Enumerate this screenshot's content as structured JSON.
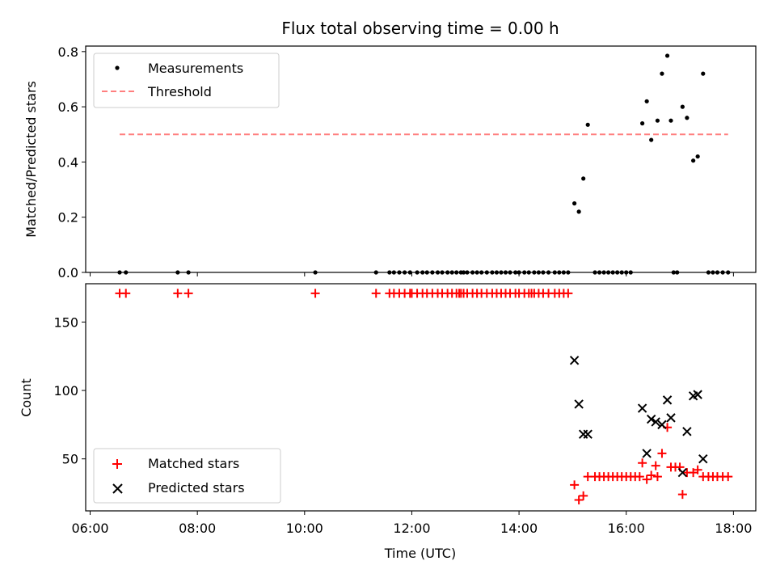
{
  "chart_data": [
    {
      "type": "scatter",
      "title": "Flux total observing time = 0.00 h",
      "xlabel": "",
      "ylabel": "Matched/Predicted stars",
      "xlim": [
        "05:55",
        "18:25"
      ],
      "ylim": [
        0,
        0.82
      ],
      "yticks": [
        0.0,
        0.2,
        0.4,
        0.6,
        0.8
      ],
      "ytick_labels": [
        "0.0",
        "0.2",
        "0.4",
        "0.6",
        "0.8"
      ],
      "legend_position": "upper-left",
      "colors": {
        "measurements": "#000000",
        "threshold": "#ff7f7f"
      },
      "series": [
        {
          "name": "Measurements",
          "marker": "dot",
          "color": "#000000",
          "x": [
            "06:33",
            "06:40",
            "07:38",
            "07:50",
            "10:12",
            "11:20",
            "11:35",
            "11:40",
            "11:46",
            "11:52",
            "11:58",
            "12:06",
            "12:12",
            "12:17",
            "12:23",
            "12:29",
            "12:34",
            "12:40",
            "12:45",
            "12:50",
            "12:55",
            "12:58",
            "13:02",
            "13:08",
            "13:13",
            "13:18",
            "13:24",
            "13:30",
            "13:35",
            "13:40",
            "13:45",
            "13:50",
            "13:56",
            "14:00",
            "14:06",
            "14:11",
            "14:17",
            "14:22",
            "14:27",
            "14:33",
            "14:40",
            "14:45",
            "14:50",
            "14:55",
            "15:02",
            "15:07",
            "15:12",
            "15:17",
            "15:25",
            "15:30",
            "15:35",
            "15:40",
            "15:45",
            "15:50",
            "15:55",
            "16:00",
            "16:05",
            "16:18",
            "16:23",
            "16:28",
            "16:35",
            "16:40",
            "16:46",
            "16:50",
            "16:53",
            "16:57",
            "17:03",
            "17:08",
            "17:15",
            "17:20",
            "17:26",
            "17:32",
            "17:37",
            "17:42",
            "17:48",
            "17:54"
          ],
          "y": [
            0,
            0,
            0,
            0,
            0,
            0,
            0,
            0,
            0,
            0,
            0,
            0,
            0,
            0,
            0,
            0,
            0,
            0,
            0,
            0,
            0,
            0,
            0,
            0,
            0,
            0,
            0,
            0,
            0,
            0,
            0,
            0,
            0,
            0,
            0,
            0,
            0,
            0,
            0,
            0,
            0,
            0,
            0,
            0,
            0.25,
            0.22,
            0.34,
            0.535,
            0,
            0,
            0,
            0,
            0,
            0,
            0,
            0,
            0,
            0.54,
            0.62,
            0.48,
            0.55,
            0.72,
            0.785,
            0.55,
            0,
            0,
            0.6,
            0.56,
            0.405,
            0.42,
            0.72,
            0,
            0,
            0,
            0,
            0
          ]
        },
        {
          "name": "Threshold",
          "marker": "dashed-line",
          "color": "#ff7f7f",
          "x": [
            "06:33",
            "17:54"
          ],
          "y": [
            0.5,
            0.5
          ]
        }
      ]
    },
    {
      "type": "scatter",
      "title": "",
      "xlabel": "Time (UTC)",
      "ylabel": "Count",
      "xlim": [
        "05:55",
        "18:25"
      ],
      "ylim": [
        12,
        178
      ],
      "xticks": [
        "06:00",
        "08:00",
        "10:00",
        "12:00",
        "14:00",
        "16:00",
        "18:00"
      ],
      "xtick_labels": [
        "06:00",
        "08:00",
        "10:00",
        "12:00",
        "14:00",
        "16:00",
        "18:00"
      ],
      "yticks": [
        50,
        100,
        150
      ],
      "ytick_labels": [
        "50",
        "100",
        "150"
      ],
      "legend_position": "lower-left",
      "colors": {
        "matched": "#ff0000",
        "predicted": "#000000"
      },
      "series": [
        {
          "name": "Matched stars",
          "marker": "plus",
          "color": "#ff0000",
          "x": [
            "06:33",
            "06:40",
            "07:38",
            "07:50",
            "10:12",
            "11:20",
            "11:35",
            "11:40",
            "11:46",
            "11:52",
            "11:58",
            "12:00",
            "12:06",
            "12:12",
            "12:17",
            "12:23",
            "12:29",
            "12:34",
            "12:40",
            "12:45",
            "12:50",
            "12:53",
            "12:55",
            "12:58",
            "13:02",
            "13:08",
            "13:13",
            "13:18",
            "13:24",
            "13:30",
            "13:35",
            "13:40",
            "13:45",
            "13:50",
            "13:56",
            "14:00",
            "14:06",
            "14:11",
            "14:14",
            "14:17",
            "14:22",
            "14:27",
            "14:33",
            "14:40",
            "14:45",
            "14:50",
            "14:55",
            "15:02",
            "15:07",
            "15:12",
            "15:17",
            "15:25",
            "15:30",
            "15:35",
            "15:40",
            "15:45",
            "15:50",
            "15:55",
            "16:00",
            "16:05",
            "16:10",
            "16:15",
            "16:18",
            "16:23",
            "16:28",
            "16:33",
            "16:35",
            "16:40",
            "16:46",
            "16:50",
            "16:55",
            "17:00",
            "17:03",
            "17:08",
            "17:15",
            "17:20",
            "17:26",
            "17:32",
            "17:37",
            "17:42",
            "17:48",
            "17:54"
          ],
          "y": [
            171,
            171,
            171,
            171,
            171,
            171,
            171,
            171,
            171,
            171,
            171,
            171,
            171,
            171,
            171,
            171,
            171,
            171,
            171,
            171,
            171,
            171,
            171,
            171,
            171,
            171,
            171,
            171,
            171,
            171,
            171,
            171,
            171,
            171,
            171,
            171,
            171,
            171,
            171,
            171,
            171,
            171,
            171,
            171,
            171,
            171,
            171,
            31,
            20,
            23,
            37,
            37,
            37,
            37,
            37,
            37,
            37,
            37,
            37,
            37,
            37,
            37,
            47,
            35,
            38,
            45,
            37,
            54,
            73,
            44,
            44,
            44,
            24,
            40,
            40,
            42,
            37,
            37,
            37,
            37,
            37,
            37
          ]
        },
        {
          "name": "Predicted stars",
          "marker": "x",
          "color": "#000000",
          "x": [
            "15:02",
            "15:07",
            "15:12",
            "15:17",
            "16:18",
            "16:23",
            "16:28",
            "16:33",
            "16:40",
            "16:46",
            "16:50",
            "17:03",
            "17:08",
            "17:15",
            "17:20",
            "17:26"
          ],
          "y": [
            122,
            90,
            68,
            68,
            87,
            54,
            79,
            77,
            75,
            93,
            80,
            40,
            70,
            96,
            97,
            50
          ]
        }
      ]
    }
  ]
}
